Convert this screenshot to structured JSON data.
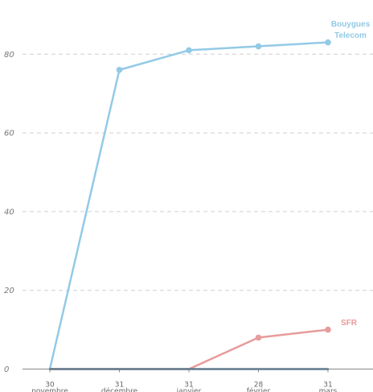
{
  "chart_data": {
    "type": "line",
    "x": [
      {
        "day": "30",
        "month": "novembre"
      },
      {
        "day": "31",
        "month": "décembre"
      },
      {
        "day": "31",
        "month": "janvier"
      },
      {
        "day": "28",
        "month": "février"
      },
      {
        "day": "31",
        "month": "mars"
      }
    ],
    "ylim": [
      0,
      90
    ],
    "yticks": [
      0,
      20,
      40,
      60,
      80
    ],
    "grid": true,
    "series": [
      {
        "name_lines": [
          "Bouygues",
          "Telecom"
        ],
        "color": "#93cae6",
        "values": [
          0,
          76,
          81,
          82,
          83
        ]
      },
      {
        "name_lines": [
          "SFR"
        ],
        "color": "#e89b9b",
        "values": [
          0,
          0,
          0,
          8,
          10
        ]
      },
      {
        "name_lines": [],
        "color": "#5f7a8c",
        "values": [
          0,
          0,
          0,
          0,
          0
        ]
      }
    ]
  }
}
